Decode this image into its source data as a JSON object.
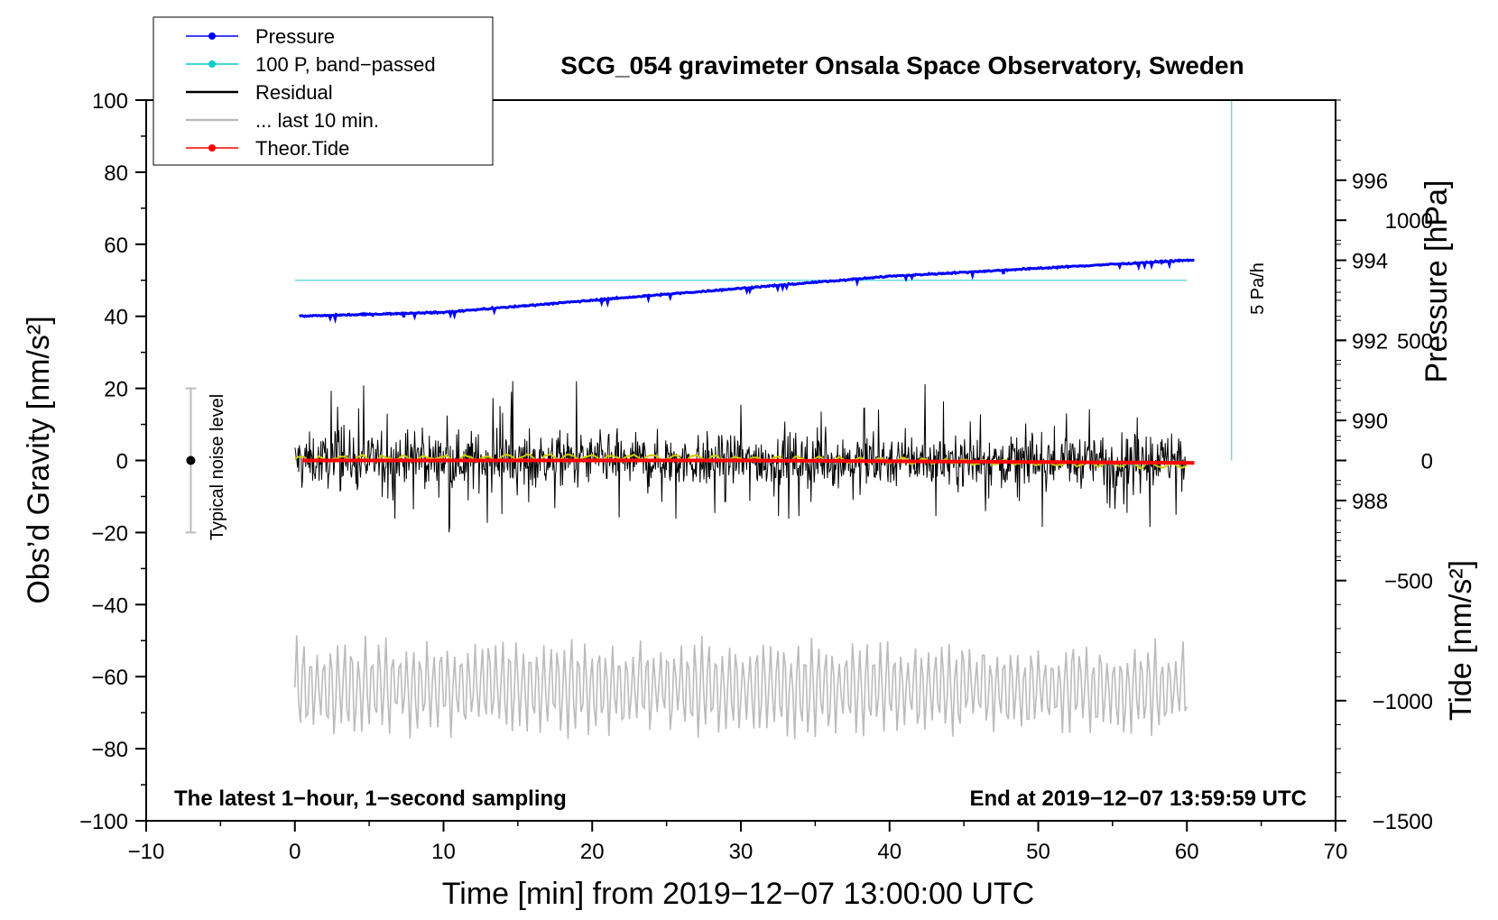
{
  "chart_data": {
    "type": "line",
    "title": "SCG_054 gravimeter Onsala Space Observatory, Sweden",
    "xlabel": "Time [min] from 2019−12−07 13:00:00 UTC",
    "ylabel": "Obs’d Gravity [nm/s²]",
    "ylabel_right_top": "Pressure [hPa]",
    "ylabel_right_bottom": "Tide [nm/s²]",
    "xlim": [
      -10,
      70
    ],
    "ylim": [
      -100,
      100
    ],
    "pressure_axis": {
      "lim": [
        980,
        998
      ],
      "ticks": [
        988,
        990,
        992,
        994,
        996
      ]
    },
    "tide_axis": {
      "lim": [
        -1500,
        1500
      ],
      "ticks": [
        1000,
        500,
        0,
        -500,
        -1000,
        -1500
      ]
    },
    "x_ticks": [
      -10,
      0,
      10,
      20,
      30,
      40,
      50,
      60,
      70
    ],
    "x_tick_labels": [
      "−10",
      "0",
      "10",
      "20",
      "30",
      "40",
      "50",
      "60",
      "70"
    ],
    "y_ticks": [
      100,
      80,
      60,
      40,
      20,
      0,
      -20,
      -40,
      -60,
      -80,
      -100
    ],
    "y_tick_labels": [
      "100",
      "80",
      "60",
      "40",
      "20",
      "0",
      "−20",
      "−40",
      "−60",
      "−80",
      "−100"
    ],
    "pressure_tick_labels": [
      "988",
      "990",
      "992",
      "994",
      "996"
    ],
    "tide_tick_labels": [
      "1000",
      "500",
      "0",
      "−500",
      "−1000",
      "−1500"
    ],
    "legend": {
      "position": "top-left",
      "entries": [
        {
          "label": "Pressure",
          "color": "#0000ff",
          "marker": true
        },
        {
          "label": "100 P, band−passed",
          "color": "#00cccc",
          "marker": true
        },
        {
          "label": "Residual",
          "color": "#000000",
          "marker": false
        },
        {
          "label": "... last 10 min.",
          "color": "#bbbbbb",
          "marker": false
        },
        {
          "label": "Theor.Tide",
          "color": "#ff0000",
          "marker": true
        }
      ]
    },
    "series": [
      {
        "name": "Pressure",
        "axis": "pressure",
        "color": "#0000ff",
        "x": [
          0,
          10,
          20,
          30,
          40,
          50,
          60
        ],
        "values": [
          992.6,
          992.7,
          993.0,
          993.3,
          993.6,
          993.8,
          994.0
        ]
      },
      {
        "name": "100 P, band-passed",
        "axis": "gravity",
        "color": "#66dddd",
        "x": [
          0,
          60
        ],
        "values": [
          50,
          50
        ]
      },
      {
        "name": "Residual",
        "axis": "gravity",
        "color": "#000000",
        "x": [
          0,
          60
        ],
        "values": [
          0,
          0
        ],
        "amplitude": 22
      },
      {
        "name": "Residual smoothed",
        "axis": "gravity",
        "color": "#cccc00",
        "x": [
          0,
          20,
          40,
          60
        ],
        "values": [
          0.5,
          1,
          0,
          -1.5
        ]
      },
      {
        "name": "... last 10 min.",
        "axis": "gravity",
        "color": "#bbbbbb",
        "x": [
          0,
          60
        ],
        "values": [
          -70,
          -56
        ],
        "amplitude": 14
      },
      {
        "name": "Theor.Tide",
        "axis": "tide",
        "color": "#ff0000",
        "x": [
          0,
          30,
          60.5
        ],
        "values": [
          0,
          0,
          -10
        ]
      }
    ],
    "noise_bar": {
      "label": "Typical noise level",
      "x": -7,
      "center": 0,
      "low": -20,
      "high": 20
    },
    "rate_line": {
      "label": "5 Pa/h",
      "x": 63,
      "from": 0,
      "to": 100
    },
    "annotation_left": "The latest 1−hour, 1−second sampling",
    "annotation_right": "End at 2019−12−07 13:59:59 UTC"
  }
}
